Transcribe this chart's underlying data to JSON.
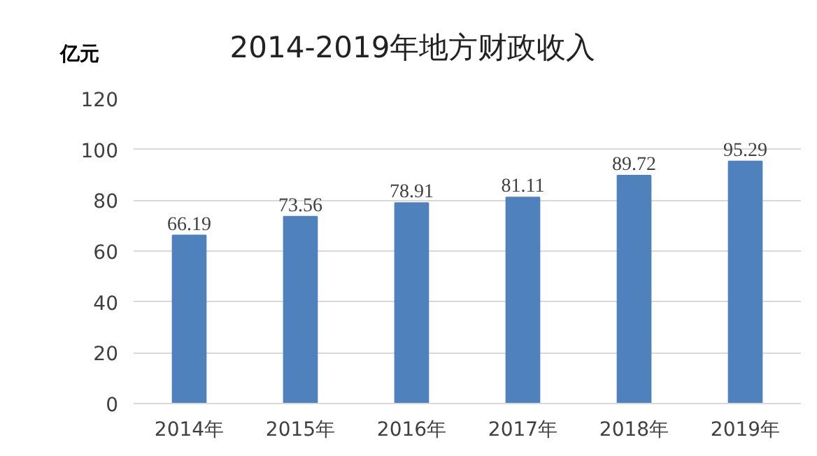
{
  "chart_data": {
    "type": "bar",
    "title": "2014-2019年地方财政收入",
    "ylabel": "亿元",
    "categories": [
      "2014年",
      "2015年",
      "2016年",
      "2017年",
      "2018年",
      "2019年"
    ],
    "values": [
      66.19,
      73.56,
      78.91,
      81.11,
      89.72,
      95.29
    ],
    "color": "#4f81bd",
    "ylim": [
      0,
      120
    ],
    "yticks": [
      0,
      20,
      40,
      60,
      80,
      100,
      120
    ],
    "grid": "y",
    "data_labels": true
  }
}
